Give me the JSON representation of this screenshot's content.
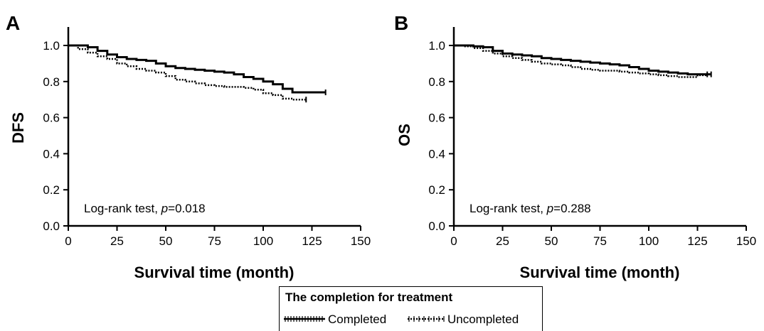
{
  "chart_data": [
    {
      "type": "line",
      "panel_label": "A",
      "title": "",
      "xlabel": "Survival time (month)",
      "ylabel": "DFS",
      "xlim": [
        0,
        150
      ],
      "ylim": [
        0,
        1.0
      ],
      "xticks": [
        "0",
        "25",
        "50",
        "75",
        "100",
        "125",
        "150"
      ],
      "yticks": [
        "0.0",
        "0.2",
        "0.4",
        "0.6",
        "0.8",
        "1.0"
      ],
      "annotation": {
        "prefix": "Log-rank test, ",
        "p_symbol": "p",
        "value": "=0.018"
      },
      "series": [
        {
          "name": "Completed",
          "style": "solid",
          "x": [
            0,
            5,
            10,
            15,
            20,
            25,
            30,
            35,
            40,
            45,
            50,
            55,
            60,
            65,
            70,
            75,
            80,
            85,
            90,
            95,
            100,
            105,
            110,
            115,
            120,
            125,
            132
          ],
          "y": [
            1.0,
            1.0,
            0.99,
            0.97,
            0.95,
            0.935,
            0.925,
            0.92,
            0.915,
            0.9,
            0.885,
            0.875,
            0.87,
            0.865,
            0.86,
            0.855,
            0.85,
            0.84,
            0.825,
            0.815,
            0.8,
            0.785,
            0.76,
            0.74,
            0.74,
            0.74,
            0.74
          ]
        },
        {
          "name": "Uncompleted",
          "style": "dotted",
          "x": [
            0,
            5,
            10,
            15,
            20,
            25,
            30,
            35,
            40,
            45,
            50,
            55,
            60,
            65,
            70,
            75,
            80,
            85,
            90,
            95,
            100,
            105,
            110,
            115,
            122
          ],
          "y": [
            1.0,
            0.98,
            0.96,
            0.94,
            0.925,
            0.9,
            0.885,
            0.87,
            0.86,
            0.85,
            0.83,
            0.81,
            0.8,
            0.79,
            0.78,
            0.775,
            0.77,
            0.77,
            0.765,
            0.755,
            0.735,
            0.725,
            0.705,
            0.7,
            0.7
          ]
        }
      ]
    },
    {
      "type": "line",
      "panel_label": "B",
      "title": "",
      "xlabel": "Survival time (month)",
      "ylabel": "OS",
      "xlim": [
        0,
        150
      ],
      "ylim": [
        0,
        1.0
      ],
      "xticks": [
        "0",
        "25",
        "50",
        "75",
        "100",
        "125",
        "150"
      ],
      "yticks": [
        "0.0",
        "0.2",
        "0.4",
        "0.6",
        "0.8",
        "1.0"
      ],
      "annotation": {
        "prefix": "Log-rank test, ",
        "p_symbol": "p",
        "value": "=0.288"
      },
      "series": [
        {
          "name": "Completed",
          "style": "solid",
          "x": [
            0,
            5,
            10,
            15,
            20,
            25,
            30,
            35,
            40,
            45,
            50,
            55,
            60,
            65,
            70,
            75,
            80,
            85,
            90,
            95,
            100,
            105,
            110,
            115,
            120,
            125,
            132
          ],
          "y": [
            1.0,
            1.0,
            0.995,
            0.99,
            0.97,
            0.955,
            0.95,
            0.945,
            0.94,
            0.93,
            0.925,
            0.92,
            0.915,
            0.91,
            0.905,
            0.9,
            0.895,
            0.89,
            0.88,
            0.87,
            0.86,
            0.855,
            0.85,
            0.845,
            0.84,
            0.84,
            0.84
          ]
        },
        {
          "name": "Uncompleted",
          "style": "dotted",
          "x": [
            0,
            5,
            10,
            15,
            20,
            25,
            30,
            35,
            40,
            45,
            50,
            55,
            60,
            65,
            70,
            75,
            80,
            85,
            90,
            95,
            100,
            105,
            110,
            115,
            120,
            125,
            130
          ],
          "y": [
            1.0,
            0.995,
            0.985,
            0.97,
            0.955,
            0.94,
            0.93,
            0.92,
            0.91,
            0.9,
            0.895,
            0.89,
            0.88,
            0.87,
            0.865,
            0.86,
            0.86,
            0.855,
            0.85,
            0.845,
            0.84,
            0.835,
            0.83,
            0.825,
            0.825,
            0.835,
            0.84
          ]
        }
      ]
    }
  ],
  "legend": {
    "title": "The completion for treatment",
    "items": [
      {
        "label": "Completed",
        "style": "solid"
      },
      {
        "label": "Uncompleted",
        "style": "dotted"
      }
    ]
  }
}
